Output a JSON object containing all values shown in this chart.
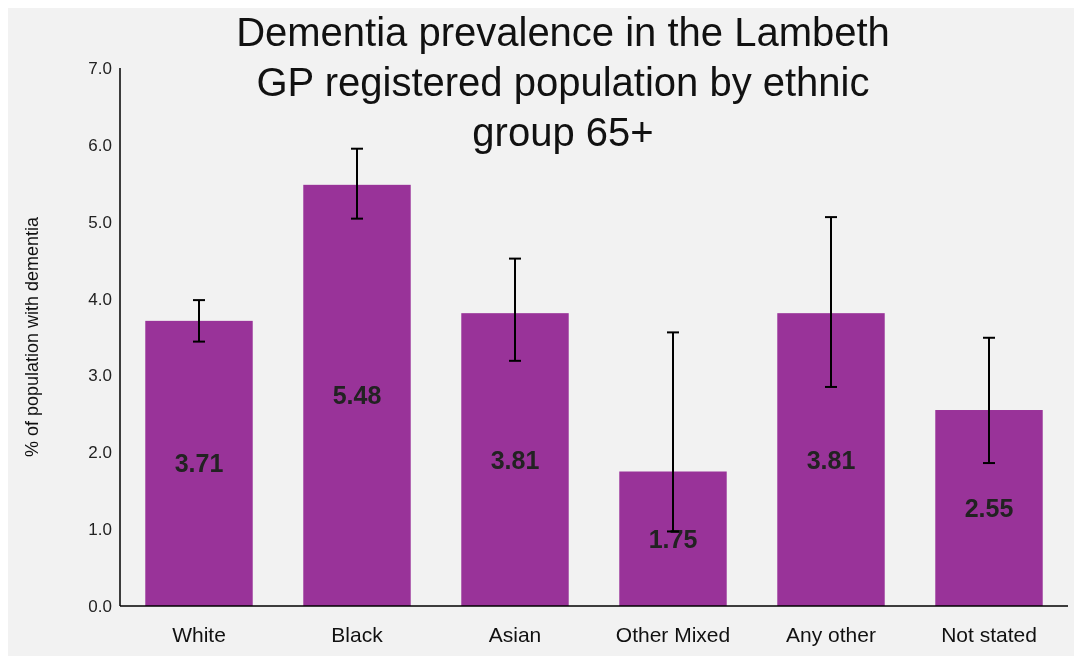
{
  "chart_data": {
    "type": "bar",
    "title": "Dementia prevalence in the Lambeth GP registered population by ethnic group 65+",
    "ylabel": "% of population with dementia",
    "categories": [
      "White",
      "Black",
      "Asian",
      "Other Mixed",
      "Any other",
      "Not stated"
    ],
    "values": [
      3.71,
      5.48,
      3.81,
      1.75,
      3.81,
      2.55
    ],
    "errors": [
      [
        3.44,
        3.98
      ],
      [
        5.04,
        5.95
      ],
      [
        3.19,
        4.52
      ],
      [
        0.97,
        3.56
      ],
      [
        2.85,
        5.06
      ],
      [
        1.86,
        3.49
      ]
    ],
    "color": "#993399",
    "data_labels": true,
    "ylim": [
      0,
      7
    ],
    "yticks": [
      {
        "value": 0,
        "label": "0.0"
      },
      {
        "value": 1,
        "label": "1.0"
      },
      {
        "value": 2,
        "label": "2.0"
      },
      {
        "value": 3,
        "label": "3.0"
      },
      {
        "value": 4,
        "label": "4.0"
      },
      {
        "value": 5,
        "label": "5.0"
      },
      {
        "value": 6,
        "label": "6.0"
      },
      {
        "value": 7,
        "label": "7.0"
      }
    ],
    "grid": false
  }
}
